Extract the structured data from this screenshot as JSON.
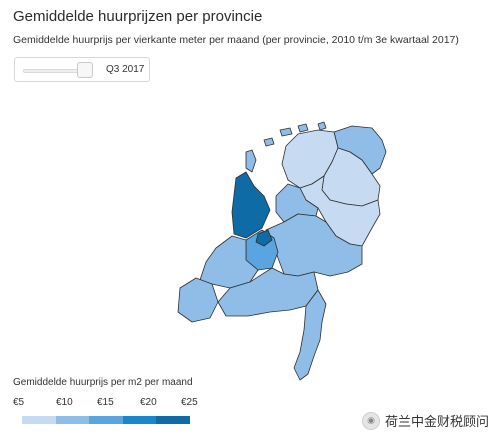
{
  "chart_data": {
    "type": "heatmap",
    "title": "Gemiddelde huurprijzen per provincie",
    "subtitle": "Gemiddelde huurprijs per vierkante meter per maand (per provincie, 2010 t/m 3e kwartaal 2017)",
    "period": "Q3 2017",
    "legend": {
      "title": "Gemiddelde huurprijs per m2 per maand",
      "ticks": [
        "€5",
        "€10",
        "€15",
        "€20",
        "€25"
      ],
      "colors": [
        "#c6daf1",
        "#8fbde8",
        "#5aa4e0",
        "#1a86cc",
        "#0e6ba6"
      ]
    },
    "values": [
      {
        "region": "Groningen",
        "color_class": 1
      },
      {
        "region": "Friesland",
        "color_class": 0
      },
      {
        "region": "Drenthe",
        "color_class": 0
      },
      {
        "region": "Overijssel",
        "color_class": 0
      },
      {
        "region": "Flevoland",
        "color_class": 1
      },
      {
        "region": "Gelderland",
        "color_class": 1
      },
      {
        "region": "Utrecht",
        "color_class": 2
      },
      {
        "region": "Noord-Holland",
        "color_class": 4
      },
      {
        "region": "Zuid-Holland",
        "color_class": 1
      },
      {
        "region": "Zeeland",
        "color_class": 1
      },
      {
        "region": "Noord-Brabant",
        "color_class": 1
      },
      {
        "region": "Limburg",
        "color_class": 1
      },
      {
        "region": "Amsterdam",
        "color_class": 4
      }
    ]
  },
  "watermark": {
    "icon": "wechat-icon",
    "text": "荷兰中金财税顾问"
  }
}
